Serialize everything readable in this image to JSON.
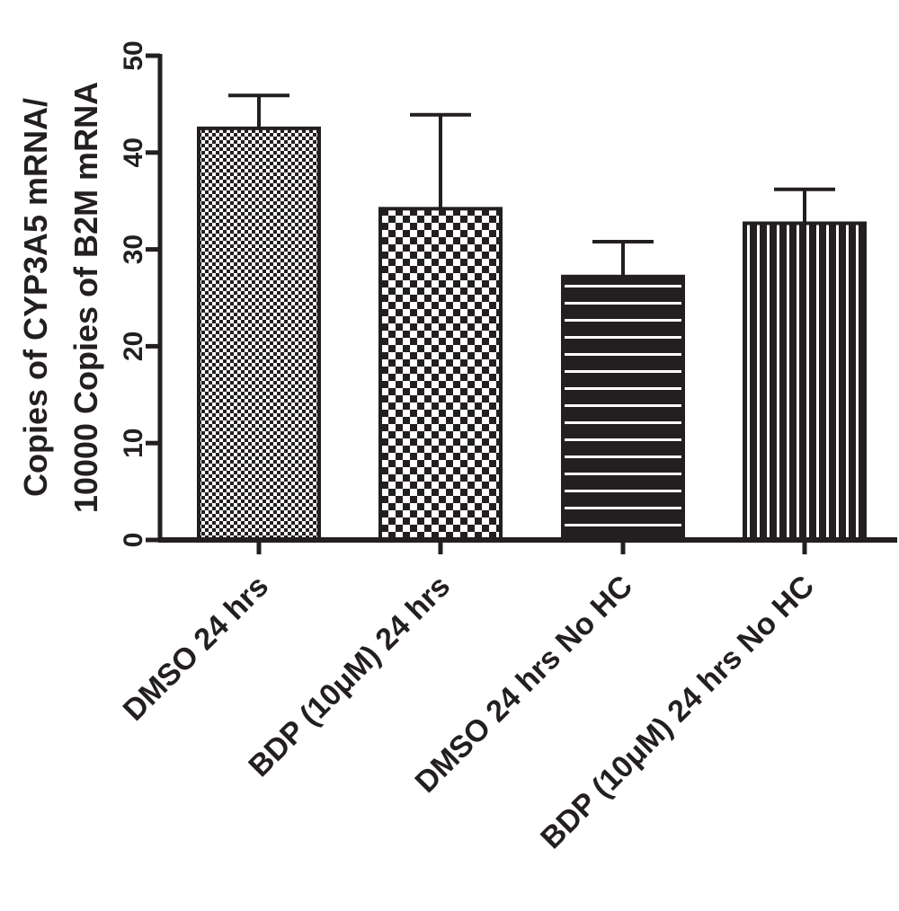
{
  "chart_data": {
    "type": "bar",
    "title": "",
    "xlabel": "",
    "ylabel_lines": [
      "Copies of CYP3A5 mRNA/",
      "10000 Copies of B2M mRNA"
    ],
    "categories": [
      "DMSO 24 hrs",
      "BDP (10μM) 24 hrs",
      "DMSO 24 hrs No HC",
      "BDP (10μM) 24 hrs No HC"
    ],
    "values": [
      42.5,
      34.2,
      27.2,
      32.7
    ],
    "errors": [
      3.4,
      9.7,
      3.6,
      3.5
    ],
    "patterns": [
      "fine-checker",
      "coarse-checker",
      "horizontal-stripes",
      "vertical-stripes"
    ],
    "ylim": [
      0,
      50
    ],
    "yticks": [
      0,
      10,
      20,
      30,
      40,
      50
    ],
    "colors": {
      "ink": "#231f20",
      "background": "#ffffff"
    }
  }
}
